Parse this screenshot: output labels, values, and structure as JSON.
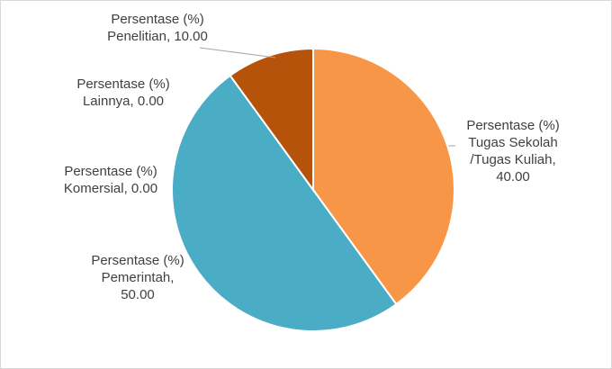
{
  "chart_data": {
    "type": "pie",
    "title": "",
    "categories": [
      "Tugas Sekolah /Tugas Kuliah",
      "Pemerintah",
      "Komersial",
      "Lainnya",
      "Penelitian"
    ],
    "values": [
      40.0,
      50.0,
      0.0,
      0.0,
      10.0
    ],
    "colors": [
      "#F79646",
      "#4BACC6",
      "#8064A2",
      "#9BBB59",
      "#B45309"
    ],
    "slice_labels": {
      "tugas": [
        "Persentase (%)",
        "Tugas Sekolah",
        "/Tugas Kuliah,",
        "40.00"
      ],
      "pemerintah": [
        "Persentase (%)",
        "Pemerintah,",
        "50.00"
      ],
      "komersial": [
        "Persentase (%)",
        "Komersial, 0.00"
      ],
      "lainnya": [
        "Persentase (%)",
        "Lainnya, 0.00"
      ],
      "penelitian": [
        "Persentase (%)",
        "Penelitian, 10.00"
      ]
    },
    "legend": "none",
    "grid": false
  }
}
